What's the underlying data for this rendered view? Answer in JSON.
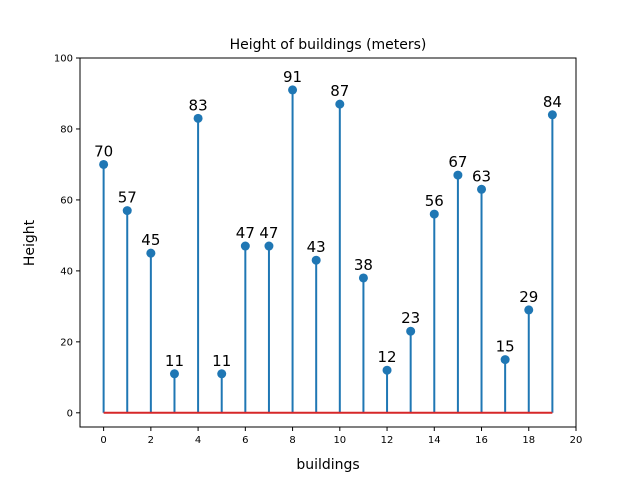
{
  "chart_data": {
    "type": "stem",
    "title": "Height of buildings (meters)",
    "xlabel": "buildings",
    "ylabel": "Height",
    "xlim": [
      -1,
      20
    ],
    "ylim": [
      -4,
      100
    ],
    "xticks": [
      0,
      2,
      4,
      6,
      8,
      10,
      12,
      14,
      16,
      18,
      20
    ],
    "yticks": [
      0,
      20,
      40,
      60,
      80,
      100
    ],
    "x": [
      0,
      1,
      2,
      3,
      4,
      5,
      6,
      7,
      8,
      9,
      10,
      11,
      12,
      13,
      14,
      15,
      16,
      17,
      18,
      19
    ],
    "values": [
      70,
      57,
      45,
      11,
      83,
      11,
      47,
      47,
      91,
      43,
      87,
      38,
      12,
      23,
      56,
      67,
      63,
      15,
      29,
      84
    ],
    "colors": {
      "stem": "#1f77b4",
      "marker": "#1f77b4",
      "baseline": "#d62728"
    },
    "grid": false
  }
}
